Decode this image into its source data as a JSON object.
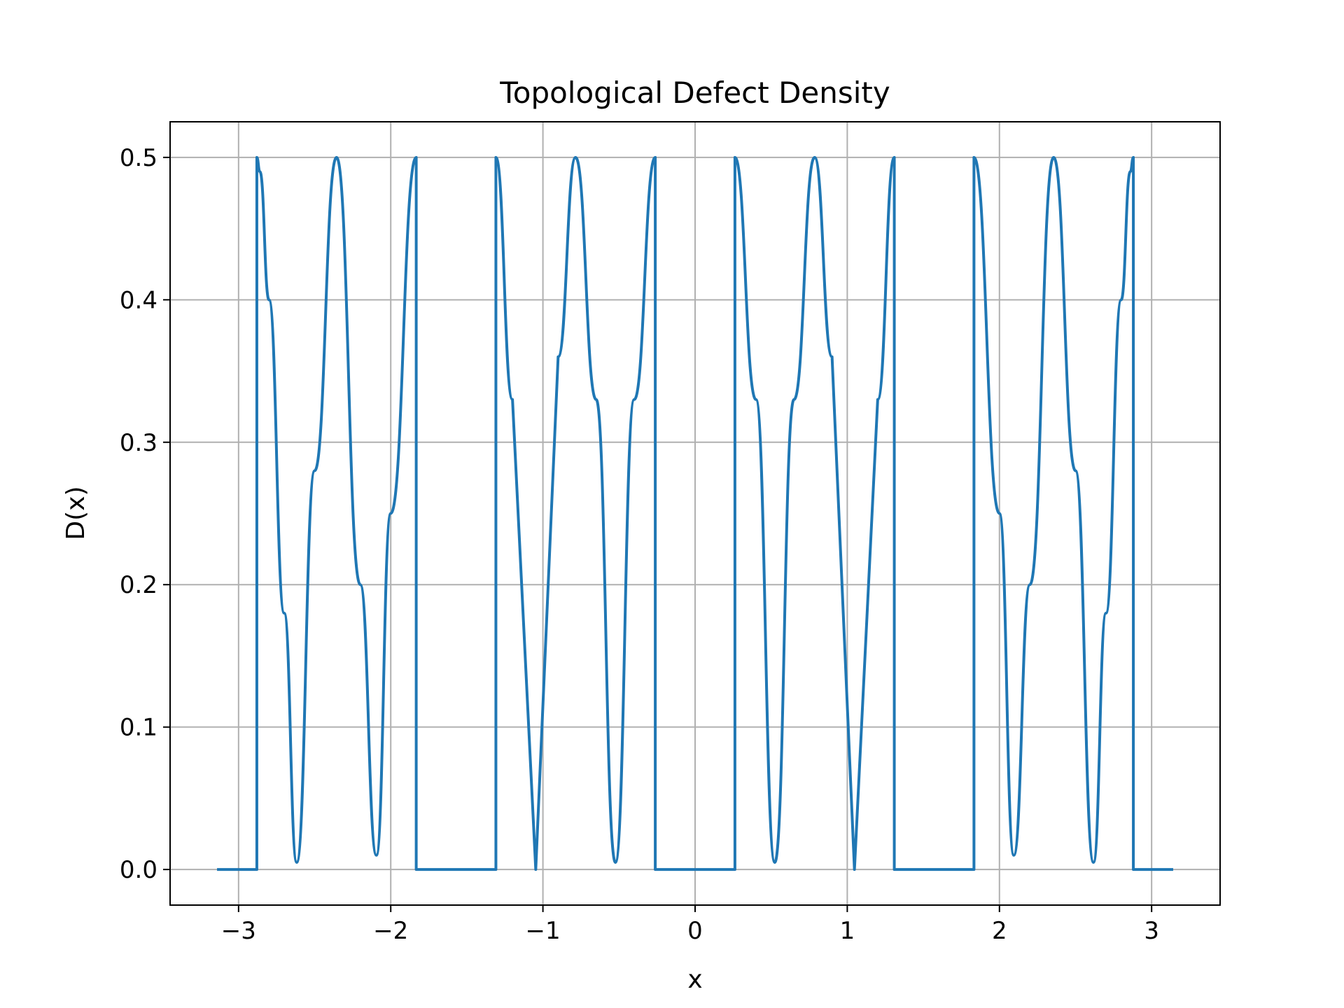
{
  "chart_data": {
    "type": "line",
    "title": "Topological Defect Density",
    "xlabel": "x",
    "ylabel": "D(x)",
    "xlim": [
      -3.45,
      3.45
    ],
    "ylim": [
      -0.025,
      0.525
    ],
    "xticks": [
      -3,
      -2,
      -1,
      0,
      1,
      2,
      3
    ],
    "xtick_labels": [
      "−3",
      "−2",
      "−1",
      "0",
      "1",
      "2",
      "3"
    ],
    "yticks": [
      0.0,
      0.1,
      0.2,
      0.3,
      0.4,
      0.5
    ],
    "ytick_labels": [
      "0.0",
      "0.1",
      "0.2",
      "0.3",
      "0.4",
      "0.5"
    ],
    "grid": true,
    "legend": "none",
    "series": [
      {
        "color": "#1f77b4",
        "x": [
          -3.1416,
          -2.8799,
          -2.8799,
          -2.86,
          -2.8,
          -2.7,
          -2.618,
          -2.5,
          -2.3562,
          -2.2,
          -2.0944,
          -2.0,
          -1.8326,
          -1.8326,
          -1.309,
          -1.309,
          -1.2,
          -1.0472,
          -0.9,
          -0.7854,
          -0.65,
          -0.5236,
          -0.4,
          -0.2618,
          -0.2618,
          0.2618,
          0.2618,
          0.4,
          0.5236,
          0.65,
          0.7854,
          0.9,
          1.0472,
          1.2,
          1.309,
          1.309,
          1.8326,
          1.8326,
          2.0,
          2.0944,
          2.2,
          2.3562,
          2.5,
          2.618,
          2.7,
          2.8,
          2.86,
          2.8799,
          2.8799,
          3.1416
        ],
        "y": [
          0.0,
          0.0,
          0.5,
          0.49,
          0.4,
          0.18,
          0.005,
          0.28,
          0.5,
          0.2,
          0.01,
          0.25,
          0.5,
          0.0,
          0.0,
          0.5,
          0.33,
          0.0,
          0.36,
          0.5,
          0.33,
          0.005,
          0.33,
          0.5,
          0.0,
          0.0,
          0.5,
          0.33,
          0.005,
          0.33,
          0.5,
          0.36,
          0.0,
          0.33,
          0.5,
          0.0,
          0.0,
          0.5,
          0.25,
          0.01,
          0.2,
          0.5,
          0.28,
          0.005,
          0.18,
          0.4,
          0.49,
          0.5,
          0.0,
          0.0
        ]
      }
    ]
  }
}
